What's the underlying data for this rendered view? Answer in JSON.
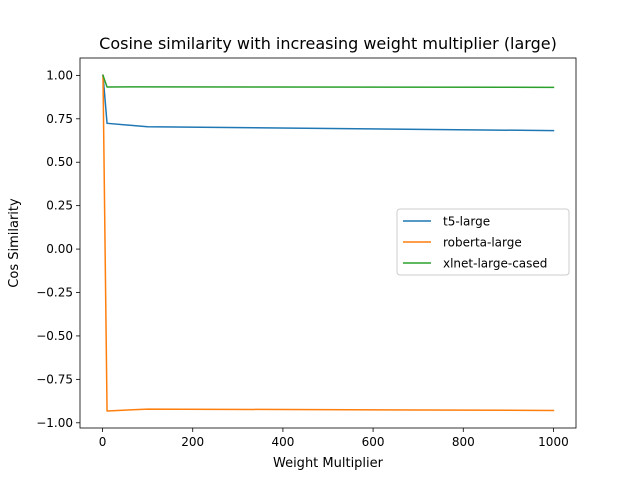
{
  "chart_data": {
    "type": "line",
    "title": "Cosine similarity with increasing weight multiplier (large)",
    "xlabel": "Weight Multiplier",
    "ylabel": "Cos Similarity",
    "xlim": [
      -50,
      1050
    ],
    "ylim": [
      -1.03,
      1.1
    ],
    "xticks": [
      0,
      200,
      400,
      600,
      800,
      1000
    ],
    "xtick_labels": [
      "0",
      "200",
      "400",
      "600",
      "800",
      "1000"
    ],
    "yticks": [
      1.0,
      0.75,
      0.5,
      0.25,
      0.0,
      -0.25,
      -0.5,
      -0.75,
      -1.0
    ],
    "ytick_labels": [
      "1.00",
      "0.75",
      "0.50",
      "0.25",
      "0.00",
      "−0.25",
      "−0.50",
      "−0.75",
      "−1.00"
    ],
    "grid": false,
    "legend_position": "center-right",
    "series": [
      {
        "name": "t5-large",
        "color": "#1f77b4",
        "x": [
          1,
          10,
          100,
          1000
        ],
        "y": [
          1.0,
          0.724,
          0.704,
          0.682
        ]
      },
      {
        "name": "roberta-large",
        "color": "#ff7f0e",
        "x": [
          1,
          10,
          100,
          1000
        ],
        "y": [
          1.0,
          -0.932,
          -0.921,
          -0.929
        ]
      },
      {
        "name": "xlnet-large-cased",
        "color": "#2ca02c",
        "x": [
          1,
          10,
          100,
          1000
        ],
        "y": [
          1.0,
          0.933,
          0.934,
          0.931
        ]
      }
    ]
  }
}
